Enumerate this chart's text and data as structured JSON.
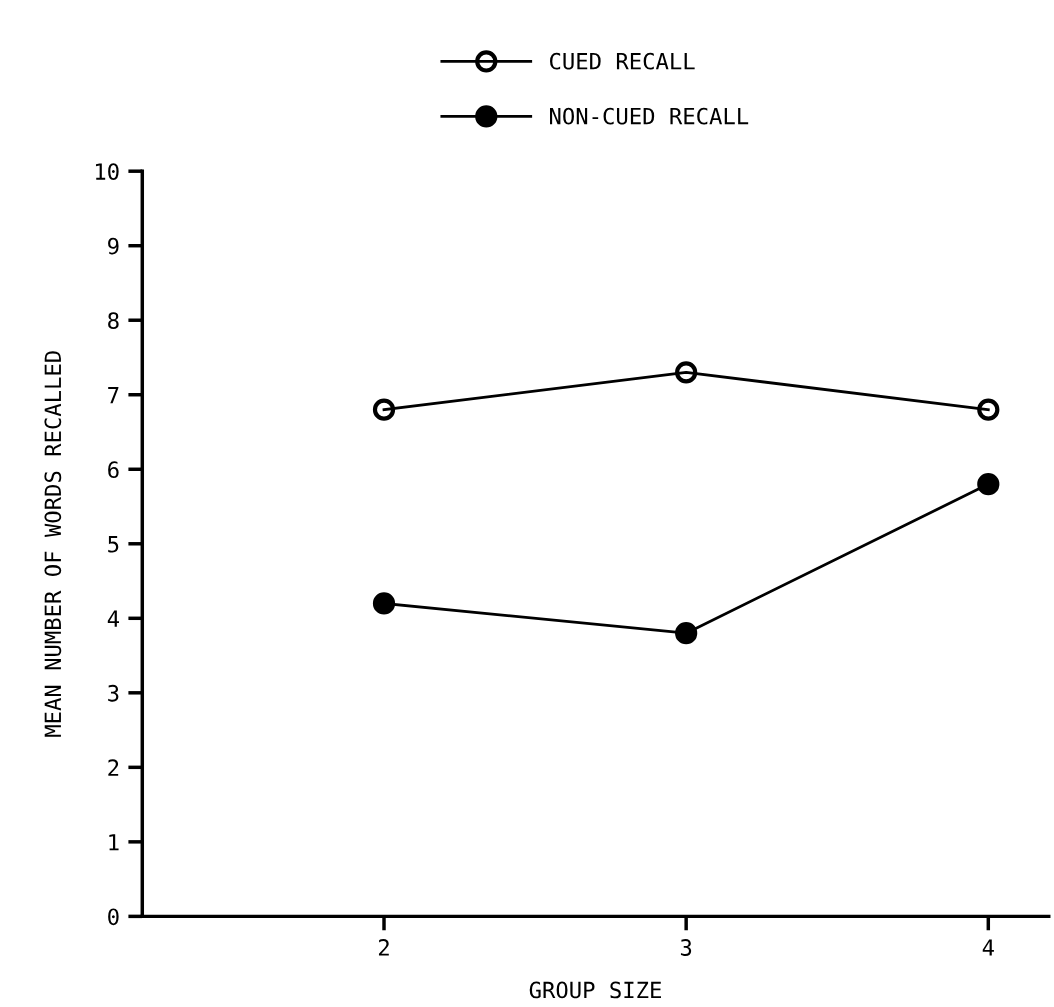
{
  "chart_data": {
    "type": "line",
    "xlabel": "GROUP SIZE",
    "ylabel": "MEAN NUMBER OF WORDS RECALLED",
    "x": [
      2,
      3,
      4
    ],
    "xlim": [
      1.2,
      4.2
    ],
    "xticks": [
      2,
      3,
      4
    ],
    "ylim": [
      0,
      10
    ],
    "yticks": [
      0,
      1,
      2,
      3,
      4,
      5,
      6,
      7,
      8,
      9,
      10
    ],
    "series": [
      {
        "name": "CUED RECALL",
        "color": "#000000",
        "marker": "circle",
        "values": [
          6.8,
          7.3,
          6.8
        ]
      },
      {
        "name": "NON-CUED RECALL",
        "color": "#000000",
        "marker": "circle",
        "values": [
          4.2,
          3.8,
          5.8
        ]
      }
    ],
    "legend": "top",
    "grid": false,
    "line_style": "solid"
  }
}
